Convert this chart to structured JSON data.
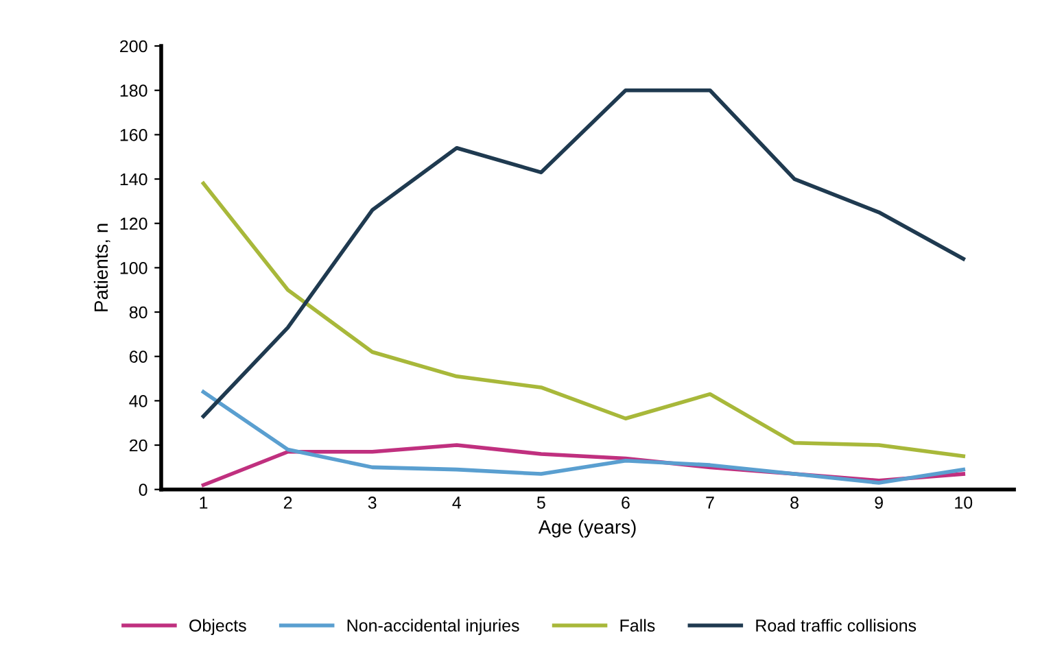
{
  "chart_data": {
    "type": "line",
    "xlabel": "Age (years)",
    "ylabel": "Patients, n",
    "categories": [
      "1",
      "2",
      "3",
      "4",
      "5",
      "6",
      "7",
      "8",
      "9",
      "10"
    ],
    "ylim": [
      0,
      200
    ],
    "yticks": [
      0,
      20,
      40,
      60,
      80,
      100,
      120,
      140,
      160,
      180,
      200
    ],
    "grid": false,
    "legend": "bottom",
    "marker": "none",
    "line_style": "solid",
    "series": [
      {
        "name": "Objects",
        "color": "#c0307f",
        "values": [
          2,
          17,
          17,
          20,
          16,
          14,
          10,
          7,
          4,
          7
        ]
      },
      {
        "name": "Non-accidental injuries",
        "color": "#5a9fd0",
        "values": [
          44,
          18,
          10,
          9,
          7,
          13,
          11,
          7,
          3,
          9
        ]
      },
      {
        "name": "Falls",
        "color": "#a8b83a",
        "values": [
          138,
          90,
          62,
          51,
          46,
          32,
          43,
          21,
          20,
          15
        ]
      },
      {
        "name": "Road traffic collisions",
        "color": "#1f3a50",
        "values": [
          33,
          73,
          126,
          154,
          143,
          180,
          180,
          140,
          125,
          104
        ]
      }
    ]
  }
}
